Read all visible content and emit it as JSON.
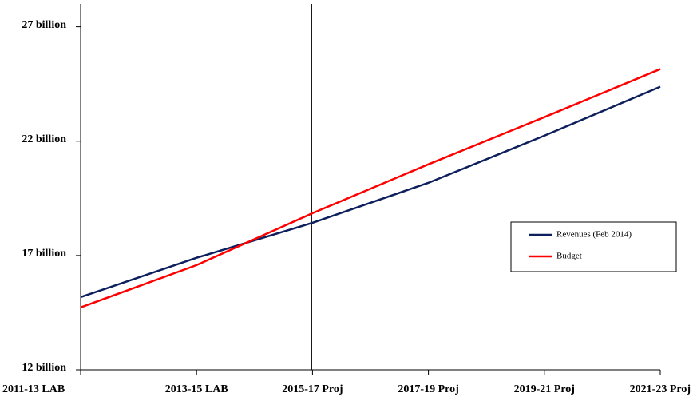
{
  "chart_data": {
    "type": "line",
    "categories": [
      "2011-13 LAB",
      "2013-15 LAB",
      "2015-17 Proj",
      "2017-19 Proj",
      "2019-21 Proj",
      "2021-23 Proj"
    ],
    "series": [
      {
        "name": "Revenues (Feb 2014)",
        "color": "#0d1f5c",
        "values": [
          15.18,
          16.9,
          18.43,
          20.18,
          22.24,
          24.38
        ]
      },
      {
        "name": "Budget",
        "color": "#ff0000",
        "values": [
          14.73,
          16.58,
          18.85,
          20.99,
          23.05,
          25.15
        ]
      }
    ],
    "ylim": [
      12,
      28
    ],
    "yticks": [
      {
        "value": 12,
        "label": "12 billion"
      },
      {
        "value": 17,
        "label": "17 billion"
      },
      {
        "value": 22,
        "label": "22 billion"
      },
      {
        "value": 27,
        "label": "27 billion"
      }
    ]
  }
}
